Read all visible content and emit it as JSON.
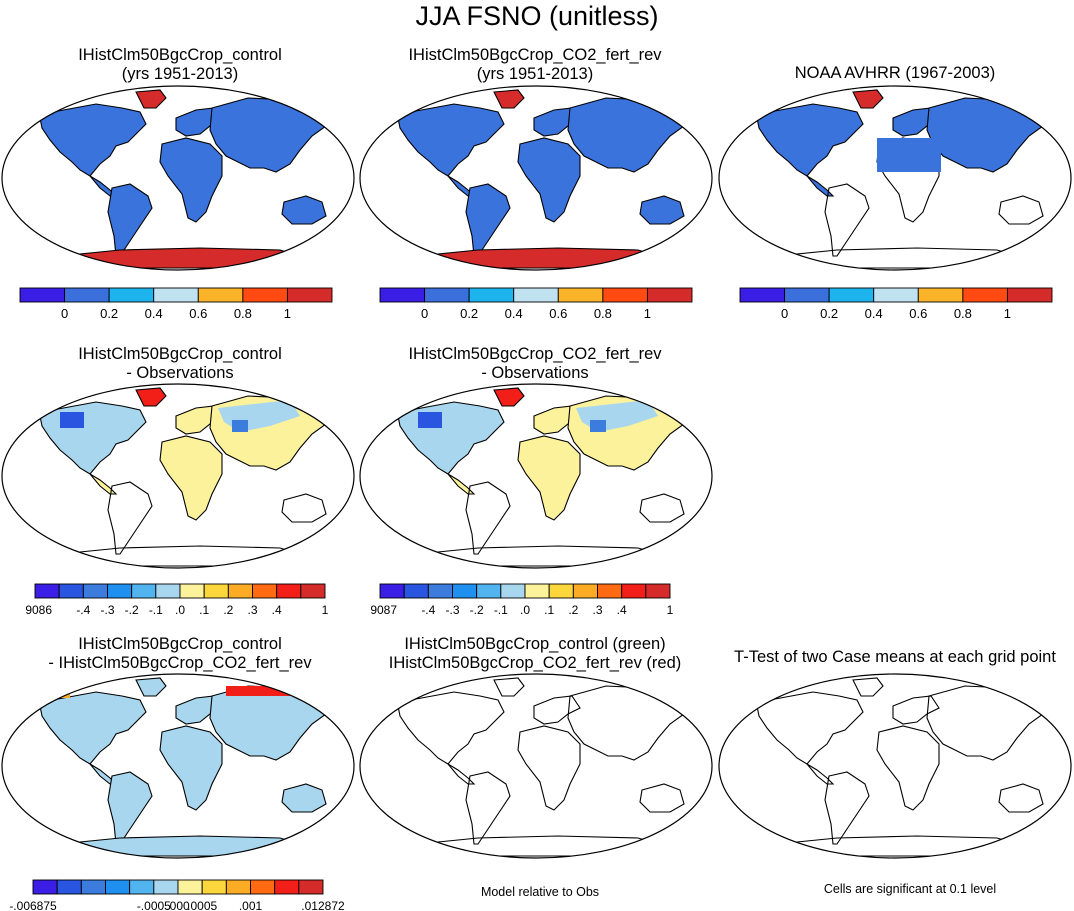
{
  "title": "JJA FSNO (unitless)",
  "panels": [
    {
      "line1": "IHistClm50BgcCrop_control",
      "line2": "(yrs 1951-2013)"
    },
    {
      "line1": "IHistClm50BgcCrop_CO2_fert_rev",
      "line2": "(yrs 1951-2013)"
    },
    {
      "line1": "NOAA AVHRR (1967-2003)",
      "line2": ""
    },
    {
      "line1": "IHistClm50BgcCrop_control",
      "line2": "- Observations"
    },
    {
      "line1": "IHistClm50BgcCrop_CO2_fert_rev",
      "line2": "- Observations"
    },
    {
      "line1": "IHistClm50BgcCrop_control",
      "line2": "- IHistClm50BgcCrop_CO2_fert_rev"
    },
    {
      "line1": "IHistClm50BgcCrop_control (green)",
      "line2": "IHistClm50BgcCrop_CO2_fert_rev (red)"
    },
    {
      "line1": "T-Test of two Case means at each grid point",
      "line2": ""
    }
  ],
  "colorbars": {
    "abs": {
      "colors": [
        "#3a1ee6",
        "#3a6fdc",
        "#1db4ee",
        "#bfe1f0",
        "#fbb42a",
        "#ff4a12",
        "#d62b2b"
      ],
      "labels": [
        "0",
        "0.2",
        "0.4",
        "0.6",
        "0.8",
        "1"
      ]
    },
    "diff1": {
      "colors": [
        "#3a1ee6",
        "#2a55e0",
        "#3b7cdc",
        "#1f8ff0",
        "#52b4ee",
        "#a8d6ee",
        "#fdf29c",
        "#fbd63c",
        "#fbac24",
        "#ff6a12",
        "#f21e18",
        "#d62b2b"
      ],
      "labels": [
        "-.9086",
        "-.4",
        "-.3",
        "-.2",
        "-.1",
        ".0",
        ".1",
        ".2",
        ".3",
        ".4",
        "1"
      ]
    },
    "diff2": {
      "colors": [
        "#3a1ee6",
        "#2a55e0",
        "#3b7cdc",
        "#1f8ff0",
        "#52b4ee",
        "#a8d6ee",
        "#fdf29c",
        "#fbd63c",
        "#fbac24",
        "#ff6a12",
        "#f21e18",
        "#d62b2b"
      ],
      "labels": [
        "-.9087",
        "-.4",
        "-.3",
        "-.2",
        "-.1",
        ".0",
        ".1",
        ".2",
        ".3",
        ".4",
        "1"
      ]
    },
    "diff3": {
      "colors": [
        "#3a1ee6",
        "#2a55e0",
        "#3b7cdc",
        "#1f8ff0",
        "#52b4ee",
        "#a8d6ee",
        "#fdf29c",
        "#fbd63c",
        "#fbac24",
        "#ff6a12",
        "#f21e18",
        "#d62b2b"
      ],
      "labels": [
        "-.006875",
        "-.0005",
        ".000",
        ".0005",
        ".001",
        ".012872"
      ]
    }
  },
  "notes": {
    "model_obs": "Model relative to Obs",
    "significance": "Cells are significant at 0.1 level"
  },
  "fills": {
    "land_abs": "#3b73dc",
    "greenland": "#d62b2b",
    "antarctica": "#d62b2b",
    "diff_pos": "#fdf29c",
    "diff_neg": "#a8d6ee",
    "diff_land": "#a8d6ee"
  }
}
